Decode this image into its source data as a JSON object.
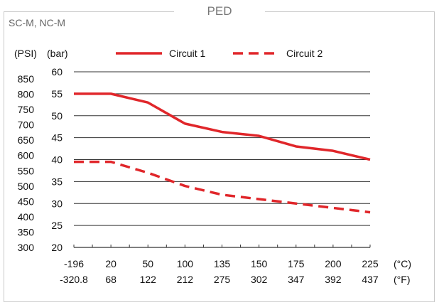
{
  "frame": {
    "title": "PED",
    "subtitle": "SC-M, NC-M"
  },
  "chart_data": {
    "type": "line",
    "unit_labels": {
      "psi": "(PSI)",
      "bar": "(bar)",
      "celsius": "(°C)",
      "fahrenheit": "(°F)"
    },
    "x_celsius": [
      "-196",
      "20",
      "50",
      "100",
      "135",
      "150",
      "175",
      "200",
      "225"
    ],
    "x_fahrenheit": [
      "-320.8",
      "68",
      "122",
      "212",
      "275",
      "302",
      "347",
      "392",
      "437"
    ],
    "y_bar_ticks": [
      "20",
      "25",
      "30",
      "35",
      "40",
      "45",
      "50",
      "55",
      "60"
    ],
    "y_psi_ticks": [
      "300",
      "350",
      "400",
      "450",
      "500",
      "550",
      "600",
      "650",
      "700",
      "750",
      "800",
      "850"
    ],
    "ylim_bar": [
      20,
      60
    ],
    "series": [
      {
        "name": "Circuit 1",
        "style": "solid",
        "color": "#e0262a",
        "values": [
          55,
          55,
          53,
          48.2,
          46.3,
          45.4,
          43,
          42,
          40
        ]
      },
      {
        "name": "Circuit 2",
        "style": "dashed",
        "color": "#e0262a",
        "values": [
          39.5,
          39.5,
          37,
          34,
          32,
          31,
          30,
          29,
          28
        ]
      }
    ],
    "grid": "horizontal",
    "legend_position": "top"
  }
}
